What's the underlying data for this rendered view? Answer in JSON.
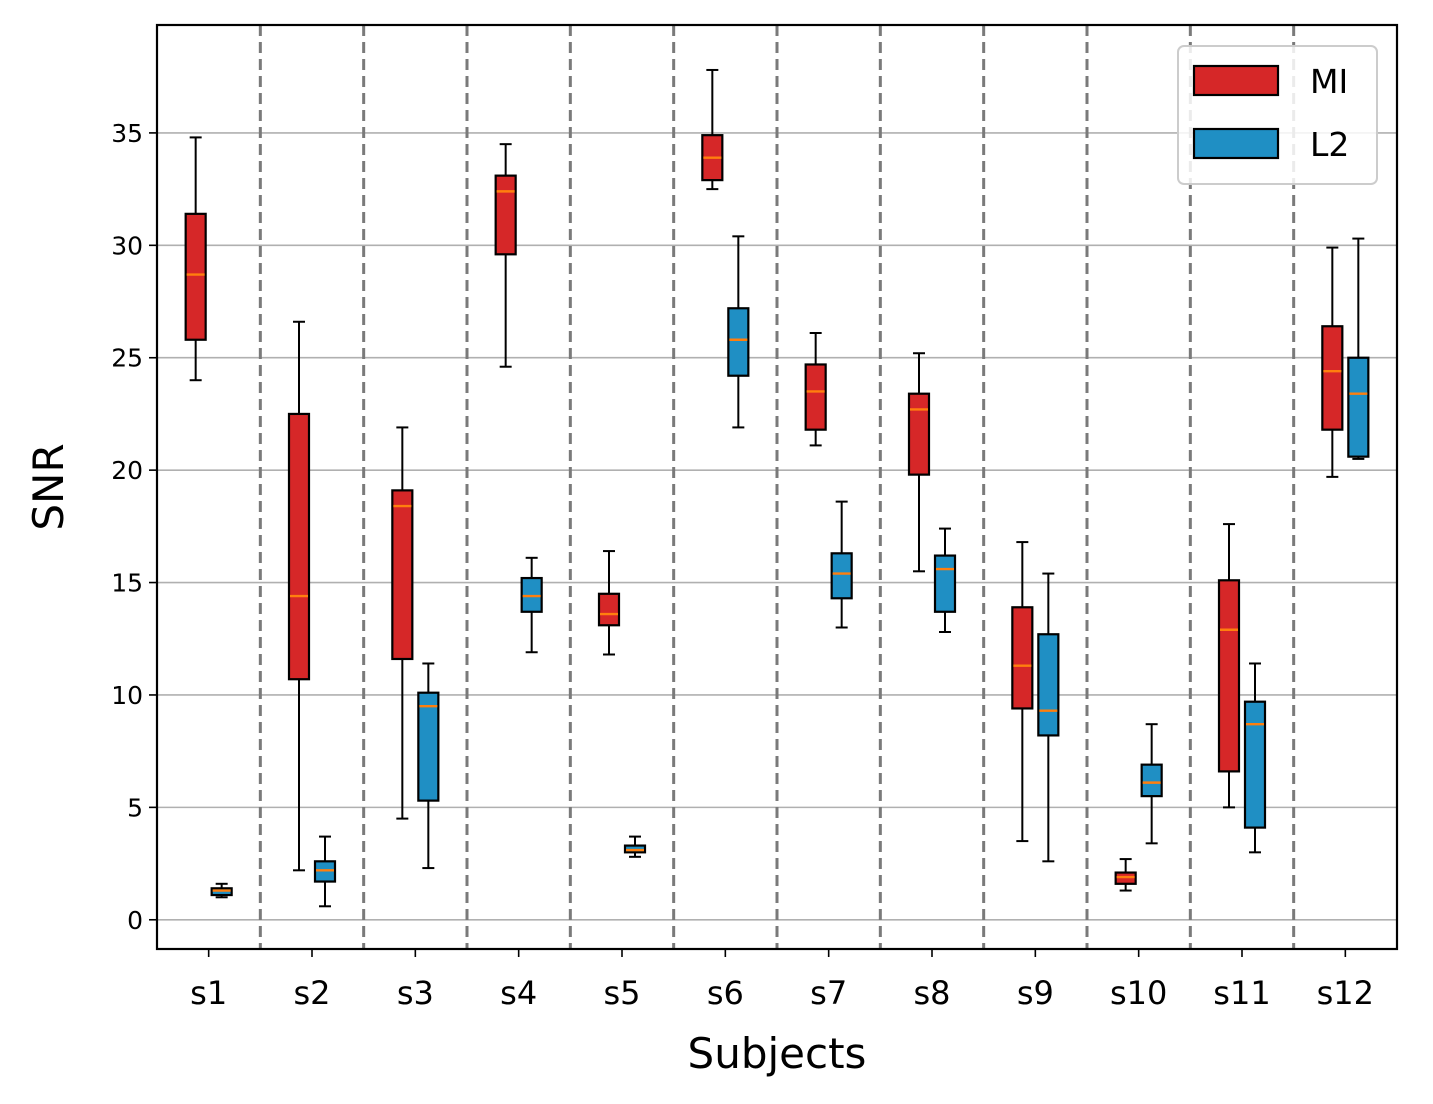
{
  "chart_data": {
    "type": "box",
    "title": "",
    "xlabel": "Subjects",
    "ylabel": "SNR",
    "ylim": [
      -1.3,
      39.8
    ],
    "yticks": [
      "0",
      "5",
      "10",
      "15",
      "20",
      "25",
      "30",
      "35"
    ],
    "grid": "horizontal",
    "separators": "dashed vertical lines between subjects",
    "legend_position": "top-right",
    "categories": [
      "s1",
      "s2",
      "s3",
      "s4",
      "s5",
      "s6",
      "s7",
      "s8",
      "s9",
      "s10",
      "s11",
      "s12"
    ],
    "series": [
      {
        "name": "MI",
        "color": "#d62728",
        "boxes": [
          {
            "min": 24.0,
            "q1": 25.8,
            "median": 28.7,
            "q3": 31.4,
            "max": 34.8
          },
          {
            "min": 2.2,
            "q1": 10.7,
            "median": 14.4,
            "q3": 22.5,
            "max": 26.6
          },
          {
            "min": 4.5,
            "q1": 11.6,
            "median": 18.4,
            "q3": 19.1,
            "max": 21.9
          },
          {
            "min": 24.6,
            "q1": 29.6,
            "median": 32.4,
            "q3": 33.1,
            "max": 34.5
          },
          {
            "min": 11.8,
            "q1": 13.1,
            "median": 13.6,
            "q3": 14.5,
            "max": 16.4
          },
          {
            "min": 32.5,
            "q1": 32.9,
            "median": 33.9,
            "q3": 34.9,
            "max": 37.8
          },
          {
            "min": 21.1,
            "q1": 21.8,
            "median": 23.5,
            "q3": 24.7,
            "max": 26.1
          },
          {
            "min": 15.5,
            "q1": 19.8,
            "median": 22.7,
            "q3": 23.4,
            "max": 25.2
          },
          {
            "min": 3.5,
            "q1": 9.4,
            "median": 11.3,
            "q3": 13.9,
            "max": 16.8
          },
          {
            "min": 1.3,
            "q1": 1.6,
            "median": 1.9,
            "q3": 2.1,
            "max": 2.7
          },
          {
            "min": 5.0,
            "q1": 6.6,
            "median": 12.9,
            "q3": 15.1,
            "max": 17.6
          },
          {
            "min": 19.7,
            "q1": 21.8,
            "median": 24.4,
            "q3": 26.4,
            "max": 29.9
          }
        ]
      },
      {
        "name": "L2",
        "color": "#1f8fc4",
        "boxes": [
          {
            "min": 1.0,
            "q1": 1.1,
            "median": 1.3,
            "q3": 1.4,
            "max": 1.6
          },
          {
            "min": 0.6,
            "q1": 1.7,
            "median": 2.2,
            "q3": 2.6,
            "max": 3.7
          },
          {
            "min": 2.3,
            "q1": 5.3,
            "median": 9.5,
            "q3": 10.1,
            "max": 11.4
          },
          {
            "min": 11.9,
            "q1": 13.7,
            "median": 14.4,
            "q3": 15.2,
            "max": 16.1
          },
          {
            "min": 2.8,
            "q1": 3.0,
            "median": 3.1,
            "q3": 3.3,
            "max": 3.7
          },
          {
            "min": 21.9,
            "q1": 24.2,
            "median": 25.8,
            "q3": 27.2,
            "max": 30.4
          },
          {
            "min": 13.0,
            "q1": 14.3,
            "median": 15.4,
            "q3": 16.3,
            "max": 18.6
          },
          {
            "min": 12.8,
            "q1": 13.7,
            "median": 15.6,
            "q3": 16.2,
            "max": 17.4
          },
          {
            "min": 2.6,
            "q1": 8.2,
            "median": 9.3,
            "q3": 12.7,
            "max": 15.4
          },
          {
            "min": 3.4,
            "q1": 5.5,
            "median": 6.1,
            "q3": 6.9,
            "max": 8.7
          },
          {
            "min": 3.0,
            "q1": 4.1,
            "median": 8.7,
            "q3": 9.7,
            "max": 11.4
          },
          {
            "min": 20.5,
            "q1": 20.6,
            "median": 23.4,
            "q3": 25.0,
            "max": 30.3
          }
        ]
      }
    ],
    "median_color": "#ff7f0e"
  }
}
